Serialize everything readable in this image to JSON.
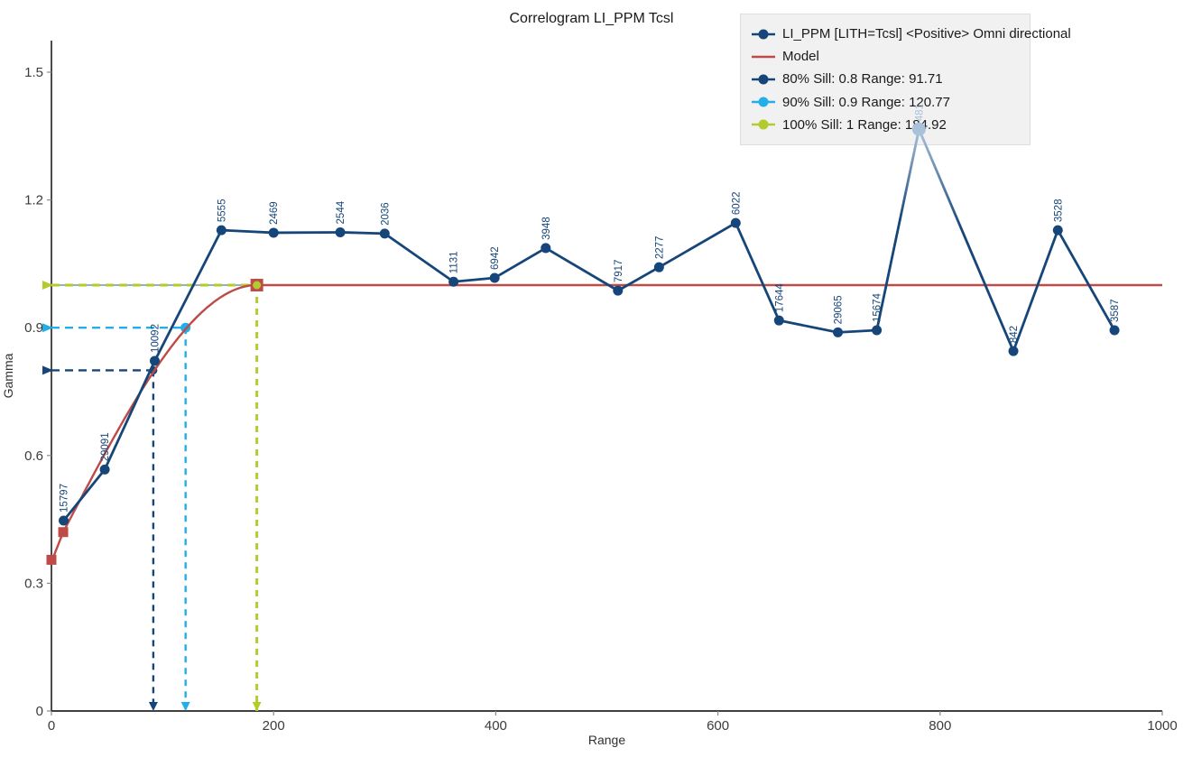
{
  "title": "Correlogram LI_PPM Tcsl",
  "colors": {
    "series_dark_blue": "#164679",
    "faded_blue": "#a9c2da",
    "model_red": "#be4b48",
    "sill80_blue": "#164679",
    "sill90_cyan": "#22aee8",
    "sill100_green": "#b5cb2d",
    "sill100_underlay_blue": "#6e96be",
    "axis_black": "#000000",
    "tick_text": "#3c3c3c",
    "legend_bg": "#f1f1f2"
  },
  "legend": {
    "items": [
      {
        "label": "LI_PPM [LITH=Tcsl] <Positive> Omni directional",
        "marker": "dot-line",
        "color": "#164679"
      },
      {
        "label": "Model",
        "marker": "line",
        "color": "#be4b48"
      },
      {
        "label": "80% Sill: 0.8 Range: 91.71",
        "marker": "dot-line",
        "color": "#164679"
      },
      {
        "label": "90% Sill: 0.9 Range: 120.77",
        "marker": "dot-line",
        "color": "#22aee8"
      },
      {
        "label": "100% Sill: 1 Range: 184.92",
        "marker": "dot-line",
        "color": "#b5cb2d"
      }
    ]
  },
  "chart_data": {
    "type": "line",
    "title": "Correlogram LI_PPM Tcsl",
    "xlabel": "Range",
    "ylabel": "Gamma",
    "xlim": [
      0,
      1000
    ],
    "ylim": [
      0,
      1.5
    ],
    "x_ticks": [
      "0",
      "200",
      "400",
      "600",
      "800",
      "1000"
    ],
    "y_ticks": [
      "0",
      "0.3",
      "0.6",
      "0.9",
      "1.2",
      "1.5"
    ],
    "grid": false,
    "legend_position": "top-right",
    "series": [
      {
        "name": "LI_PPM [LITH=Tcsl] <Positive> Omni directional",
        "color": "#164679",
        "points": [
          {
            "x": 11,
            "y": 0.447,
            "label": "15797"
          },
          {
            "x": 48,
            "y": 0.567,
            "label": "29091"
          },
          {
            "x": 93,
            "y": 0.822,
            "label": "10092"
          },
          {
            "x": 153,
            "y": 1.129,
            "label": "5555"
          },
          {
            "x": 200,
            "y": 1.123,
            "label": "2469"
          },
          {
            "x": 260,
            "y": 1.124,
            "label": "2544"
          },
          {
            "x": 300,
            "y": 1.121,
            "label": "2036"
          },
          {
            "x": 362,
            "y": 1.008,
            "label": "1131"
          },
          {
            "x": 399,
            "y": 1.017,
            "label": "6942"
          },
          {
            "x": 445,
            "y": 1.087,
            "label": "3948"
          },
          {
            "x": 510,
            "y": 0.987,
            "label": "7917"
          },
          {
            "x": 547,
            "y": 1.042,
            "label": "2277"
          },
          {
            "x": 616,
            "y": 1.146,
            "label": "6022"
          },
          {
            "x": 655,
            "y": 0.917,
            "label": "17644"
          },
          {
            "x": 708,
            "y": 0.889,
            "label": "29065"
          },
          {
            "x": 743,
            "y": 0.894,
            "label": "15674"
          },
          {
            "x": 781,
            "y": 1.366,
            "label": "481",
            "faded": true
          },
          {
            "x": 866,
            "y": 0.845,
            "label": "842"
          },
          {
            "x": 906,
            "y": 1.129,
            "label": "3528"
          },
          {
            "x": 957,
            "y": 0.894,
            "label": "3587"
          }
        ]
      }
    ],
    "model": {
      "name": "Model",
      "color": "#be4b48",
      "shape": "spherical",
      "nugget": 0.35,
      "sill": 1,
      "range": 184.92,
      "knee": {
        "x": 10.6,
        "y": 0.42
      },
      "square_handles": [
        {
          "x": 0,
          "y": 0.355
        },
        {
          "x": 10.6,
          "y": 0.42
        },
        {
          "x": 184.92,
          "y": 1.0
        }
      ]
    },
    "sills": [
      {
        "pct": "80%",
        "sill": 0.8,
        "range": 91.71,
        "color": "#164679",
        "label": "80% Sill: 0.8 Range: 91.71"
      },
      {
        "pct": "90%",
        "sill": 0.9,
        "range": 120.77,
        "color": "#22aee8",
        "label": "90% Sill: 0.9 Range: 120.77"
      },
      {
        "pct": "100%",
        "sill": 1.0,
        "range": 184.92,
        "color": "#b5cb2d",
        "label": "100% Sill: 1 Range: 184.92"
      }
    ]
  }
}
